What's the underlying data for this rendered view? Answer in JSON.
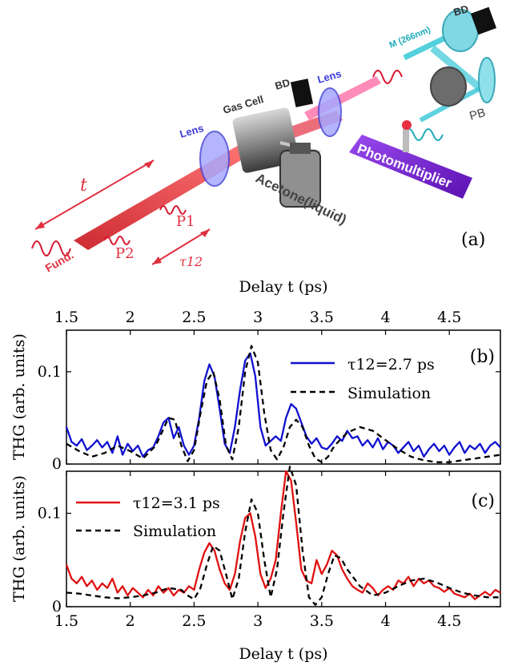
{
  "schematic": {
    "panel_label": "(a)",
    "labels": {
      "lens_left": "Lens",
      "gas_cell": "Gas Cell",
      "bd_left": "BD",
      "lens_right": "Lens",
      "mirror": "M (266nm)",
      "bd_right": "BD",
      "pb": "PB",
      "photomultiplier": "Photomultiplier",
      "acetone": "Acetone(liquid)",
      "t": "t",
      "p1": "P1",
      "p2": "P2",
      "fund": "Fund.",
      "tau12": "τ12"
    },
    "colors": {
      "beam_red": "#e8363a",
      "beam_cyan": "#38c8d8",
      "pmt": "#7a2bd6",
      "label_blue": "#3a3ad8",
      "label_cyan": "#1aaab8"
    }
  },
  "chart_data": [
    {
      "type": "line",
      "panel_label": "(b)",
      "xlabel_top": "Delay t (ps)",
      "ylabel": "THG (arb. units)",
      "xlim": [
        1.5,
        4.9
      ],
      "ylim": [
        0,
        0.145
      ],
      "xticks": [
        1.5,
        2,
        2.5,
        3,
        3.5,
        4,
        4.5
      ],
      "yticks": [
        0,
        0.1
      ],
      "grid": false,
      "legend_position": "top-right",
      "series": [
        {
          "name": "τ12=2.7 ps",
          "color": "#1010d0",
          "style": "solid",
          "x": [
            1.5,
            1.54,
            1.58,
            1.62,
            1.66,
            1.7,
            1.74,
            1.78,
            1.82,
            1.86,
            1.9,
            1.94,
            1.98,
            2.02,
            2.06,
            2.1,
            2.14,
            2.18,
            2.22,
            2.26,
            2.3,
            2.34,
            2.38,
            2.42,
            2.46,
            2.5,
            2.54,
            2.58,
            2.62,
            2.66,
            2.7,
            2.74,
            2.78,
            2.82,
            2.86,
            2.9,
            2.94,
            2.98,
            3.02,
            3.06,
            3.1,
            3.14,
            3.18,
            3.22,
            3.26,
            3.3,
            3.34,
            3.38,
            3.42,
            3.46,
            3.5,
            3.54,
            3.58,
            3.62,
            3.66,
            3.7,
            3.74,
            3.78,
            3.82,
            3.86,
            3.9,
            3.94,
            3.98,
            4.02,
            4.06,
            4.1,
            4.14,
            4.18,
            4.22,
            4.26,
            4.3,
            4.34,
            4.38,
            4.42,
            4.46,
            4.5,
            4.54,
            4.58,
            4.62,
            4.66,
            4.7,
            4.74,
            4.78,
            4.82,
            4.86,
            4.9
          ],
          "y": [
            0.04,
            0.024,
            0.02,
            0.027,
            0.015,
            0.02,
            0.026,
            0.018,
            0.024,
            0.012,
            0.03,
            0.01,
            0.022,
            0.014,
            0.02,
            0.008,
            0.015,
            0.018,
            0.03,
            0.045,
            0.05,
            0.028,
            0.04,
            0.02,
            0.01,
            0.02,
            0.05,
            0.09,
            0.108,
            0.095,
            0.06,
            0.022,
            0.012,
            0.04,
            0.08,
            0.112,
            0.12,
            0.095,
            0.04,
            0.02,
            0.025,
            0.03,
            0.025,
            0.05,
            0.065,
            0.06,
            0.045,
            0.03,
            0.022,
            0.028,
            0.018,
            0.016,
            0.022,
            0.03,
            0.025,
            0.036,
            0.028,
            0.03,
            0.02,
            0.026,
            0.018,
            0.028,
            0.016,
            0.024,
            0.02,
            0.012,
            0.018,
            0.024,
            0.014,
            0.02,
            0.008,
            0.016,
            0.022,
            0.014,
            0.02,
            0.01,
            0.018,
            0.024,
            0.012,
            0.02,
            0.016,
            0.022,
            0.012,
            0.02,
            0.024,
            0.018
          ]
        },
        {
          "name": "Simulation",
          "color": "#000000",
          "style": "dashed",
          "x": [
            1.5,
            1.6,
            1.7,
            1.8,
            1.9,
            2.0,
            2.1,
            2.2,
            2.3,
            2.35,
            2.4,
            2.45,
            2.5,
            2.55,
            2.6,
            2.65,
            2.7,
            2.75,
            2.8,
            2.85,
            2.9,
            2.95,
            3.0,
            3.05,
            3.1,
            3.15,
            3.2,
            3.25,
            3.3,
            3.35,
            3.4,
            3.45,
            3.5,
            3.55,
            3.6,
            3.7,
            3.8,
            3.9,
            4.0,
            4.1,
            4.2,
            4.3,
            4.4,
            4.5,
            4.6,
            4.7,
            4.8,
            4.9
          ],
          "y": [
            0.022,
            0.014,
            0.008,
            0.012,
            0.02,
            0.014,
            0.006,
            0.02,
            0.05,
            0.048,
            0.02,
            0.003,
            0.015,
            0.055,
            0.09,
            0.1,
            0.07,
            0.02,
            0.005,
            0.04,
            0.1,
            0.128,
            0.11,
            0.055,
            0.015,
            0.005,
            0.018,
            0.04,
            0.048,
            0.04,
            0.02,
            0.006,
            0.002,
            0.008,
            0.02,
            0.034,
            0.04,
            0.036,
            0.026,
            0.016,
            0.008,
            0.004,
            0.002,
            0.002,
            0.004,
            0.006,
            0.008,
            0.01
          ]
        }
      ]
    },
    {
      "type": "line",
      "panel_label": "(c)",
      "xlabel": "Delay t (ps)",
      "ylabel": "THG (arb. units)",
      "xlim": [
        1.5,
        4.9
      ],
      "ylim": [
        0,
        0.145
      ],
      "xticks": [
        1.5,
        2,
        2.5,
        3,
        3.5,
        4,
        4.5
      ],
      "yticks": [
        0,
        0.1
      ],
      "grid": false,
      "legend_position": "top-left",
      "series": [
        {
          "name": "τ12=3.1 ps",
          "color": "#e01010",
          "style": "solid",
          "x": [
            1.5,
            1.54,
            1.58,
            1.62,
            1.66,
            1.7,
            1.74,
            1.78,
            1.82,
            1.86,
            1.9,
            1.94,
            1.98,
            2.02,
            2.06,
            2.1,
            2.14,
            2.18,
            2.22,
            2.26,
            2.3,
            2.34,
            2.38,
            2.42,
            2.46,
            2.5,
            2.54,
            2.58,
            2.62,
            2.66,
            2.7,
            2.74,
            2.78,
            2.82,
            2.86,
            2.9,
            2.94,
            2.98,
            3.02,
            3.06,
            3.1,
            3.14,
            3.18,
            3.22,
            3.26,
            3.3,
            3.34,
            3.38,
            3.42,
            3.46,
            3.5,
            3.54,
            3.58,
            3.62,
            3.66,
            3.7,
            3.74,
            3.78,
            3.82,
            3.86,
            3.9,
            3.94,
            3.98,
            4.02,
            4.06,
            4.1,
            4.14,
            4.18,
            4.22,
            4.26,
            4.3,
            4.34,
            4.38,
            4.42,
            4.46,
            4.5,
            4.54,
            4.58,
            4.62,
            4.66,
            4.7,
            4.74,
            4.78,
            4.82,
            4.86,
            4.9
          ],
          "y": [
            0.045,
            0.03,
            0.025,
            0.032,
            0.022,
            0.028,
            0.018,
            0.025,
            0.02,
            0.03,
            0.015,
            0.022,
            0.012,
            0.02,
            0.015,
            0.01,
            0.018,
            0.012,
            0.022,
            0.015,
            0.02,
            0.012,
            0.018,
            0.015,
            0.022,
            0.018,
            0.04,
            0.058,
            0.068,
            0.06,
            0.04,
            0.025,
            0.018,
            0.035,
            0.07,
            0.095,
            0.1,
            0.075,
            0.035,
            0.02,
            0.03,
            0.05,
            0.1,
            0.145,
            0.135,
            0.09,
            0.04,
            0.028,
            0.025,
            0.05,
            0.035,
            0.045,
            0.06,
            0.055,
            0.04,
            0.03,
            0.022,
            0.018,
            0.015,
            0.025,
            0.02,
            0.012,
            0.018,
            0.022,
            0.018,
            0.028,
            0.025,
            0.032,
            0.022,
            0.03,
            0.025,
            0.028,
            0.022,
            0.02,
            0.016,
            0.02,
            0.014,
            0.012,
            0.01,
            0.014,
            0.008,
            0.012,
            0.016,
            0.012,
            0.018,
            0.015
          ]
        },
        {
          "name": "Simulation",
          "color": "#000000",
          "style": "dashed",
          "x": [
            1.5,
            1.6,
            1.7,
            1.8,
            1.9,
            2.0,
            2.1,
            2.2,
            2.3,
            2.4,
            2.45,
            2.5,
            2.55,
            2.6,
            2.65,
            2.7,
            2.75,
            2.8,
            2.85,
            2.9,
            2.95,
            3.0,
            3.05,
            3.1,
            3.15,
            3.2,
            3.25,
            3.3,
            3.35,
            3.4,
            3.45,
            3.5,
            3.55,
            3.6,
            3.65,
            3.7,
            3.8,
            3.9,
            4.0,
            4.1,
            4.2,
            4.3,
            4.4,
            4.5,
            4.6,
            4.7,
            4.8,
            4.9
          ],
          "y": [
            0.015,
            0.014,
            0.012,
            0.01,
            0.009,
            0.01,
            0.012,
            0.015,
            0.02,
            0.018,
            0.012,
            0.008,
            0.02,
            0.045,
            0.065,
            0.06,
            0.035,
            0.008,
            0.03,
            0.08,
            0.115,
            0.1,
            0.05,
            0.01,
            0.04,
            0.1,
            0.15,
            0.13,
            0.06,
            0.01,
            0.002,
            0.01,
            0.035,
            0.055,
            0.052,
            0.04,
            0.022,
            0.012,
            0.015,
            0.022,
            0.028,
            0.03,
            0.026,
            0.02,
            0.015,
            0.012,
            0.01,
            0.01
          ]
        }
      ]
    }
  ]
}
